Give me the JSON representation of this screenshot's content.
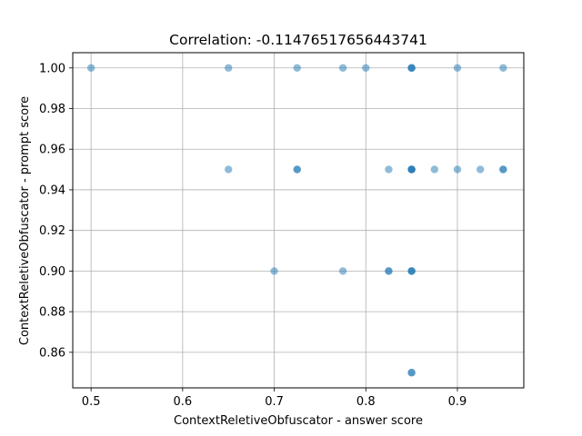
{
  "chart_data": {
    "type": "scatter",
    "title": "Correlation: -0.11476517656443741",
    "xlabel": "ContextReletiveObfuscator - answer score",
    "ylabel": "ContextReletiveObfuscator - prompt score",
    "xlim": [
      0.48,
      0.9725
    ],
    "ylim": [
      0.8425,
      1.0075
    ],
    "xticks": [
      0.5,
      0.6,
      0.7,
      0.8,
      0.9
    ],
    "xtick_labels": [
      "0.5",
      "0.6",
      "0.7",
      "0.8",
      "0.9"
    ],
    "yticks": [
      0.86,
      0.88,
      0.9,
      0.92,
      0.94,
      0.96,
      0.98,
      1.0
    ],
    "ytick_labels": [
      "0.86",
      "0.88",
      "0.90",
      "0.92",
      "0.94",
      "0.96",
      "0.98",
      "1.00"
    ],
    "grid": true,
    "color": "#1f77b4",
    "opacity": 0.5,
    "points": [
      {
        "x": 0.5,
        "y": 1.0
      },
      {
        "x": 0.65,
        "y": 1.0
      },
      {
        "x": 0.725,
        "y": 1.0
      },
      {
        "x": 0.775,
        "y": 1.0
      },
      {
        "x": 0.8,
        "y": 1.0
      },
      {
        "x": 0.85,
        "y": 1.0
      },
      {
        "x": 0.85,
        "y": 1.0
      },
      {
        "x": 0.85,
        "y": 1.0
      },
      {
        "x": 0.9,
        "y": 1.0
      },
      {
        "x": 0.95,
        "y": 1.0
      },
      {
        "x": 0.65,
        "y": 0.95
      },
      {
        "x": 0.725,
        "y": 0.95
      },
      {
        "x": 0.725,
        "y": 0.95
      },
      {
        "x": 0.825,
        "y": 0.95
      },
      {
        "x": 0.85,
        "y": 0.95
      },
      {
        "x": 0.85,
        "y": 0.95
      },
      {
        "x": 0.85,
        "y": 0.95
      },
      {
        "x": 0.85,
        "y": 0.95
      },
      {
        "x": 0.875,
        "y": 0.95
      },
      {
        "x": 0.9,
        "y": 0.95
      },
      {
        "x": 0.925,
        "y": 0.95
      },
      {
        "x": 0.95,
        "y": 0.95
      },
      {
        "x": 0.95,
        "y": 0.95
      },
      {
        "x": 0.7,
        "y": 0.9
      },
      {
        "x": 0.775,
        "y": 0.9
      },
      {
        "x": 0.825,
        "y": 0.9
      },
      {
        "x": 0.825,
        "y": 0.9
      },
      {
        "x": 0.85,
        "y": 0.9
      },
      {
        "x": 0.85,
        "y": 0.9
      },
      {
        "x": 0.85,
        "y": 0.9
      },
      {
        "x": 0.85,
        "y": 0.85
      },
      {
        "x": 0.85,
        "y": 0.85
      }
    ]
  }
}
